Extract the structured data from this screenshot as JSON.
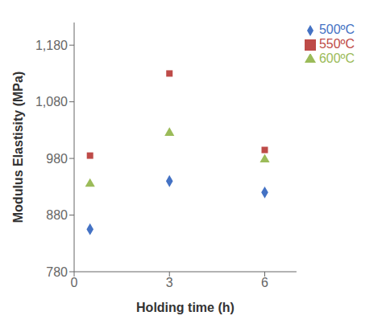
{
  "chart_data": {
    "type": "scatter",
    "xlabel": "Holding time (h)",
    "ylabel": "Modulus Elastisity (MPa)",
    "series": [
      {
        "name": "500ºC",
        "color": "#4472C4",
        "marker": "diamond",
        "x": [
          0.5,
          3,
          6
        ],
        "values": [
          855,
          940,
          920
        ]
      },
      {
        "name": "550ºC",
        "color": "#BE4B48",
        "marker": "square",
        "x": [
          0.5,
          3,
          6
        ],
        "values": [
          985,
          1130,
          995
        ]
      },
      {
        "name": "600ºC",
        "color": "#9BBB59",
        "marker": "triangle",
        "x": [
          0.5,
          3,
          6
        ],
        "values": [
          935,
          1025,
          978
        ]
      }
    ],
    "xlim": [
      0,
      7
    ],
    "xticks": [
      0,
      3,
      6
    ],
    "ylim": [
      780,
      1220
    ],
    "yticks": [
      780,
      880,
      980,
      {
        "value": 1080,
        "label": "1,080"
      },
      {
        "value": 1180,
        "label": "1,180"
      }
    ],
    "grid": false,
    "legend": "upper right"
  }
}
